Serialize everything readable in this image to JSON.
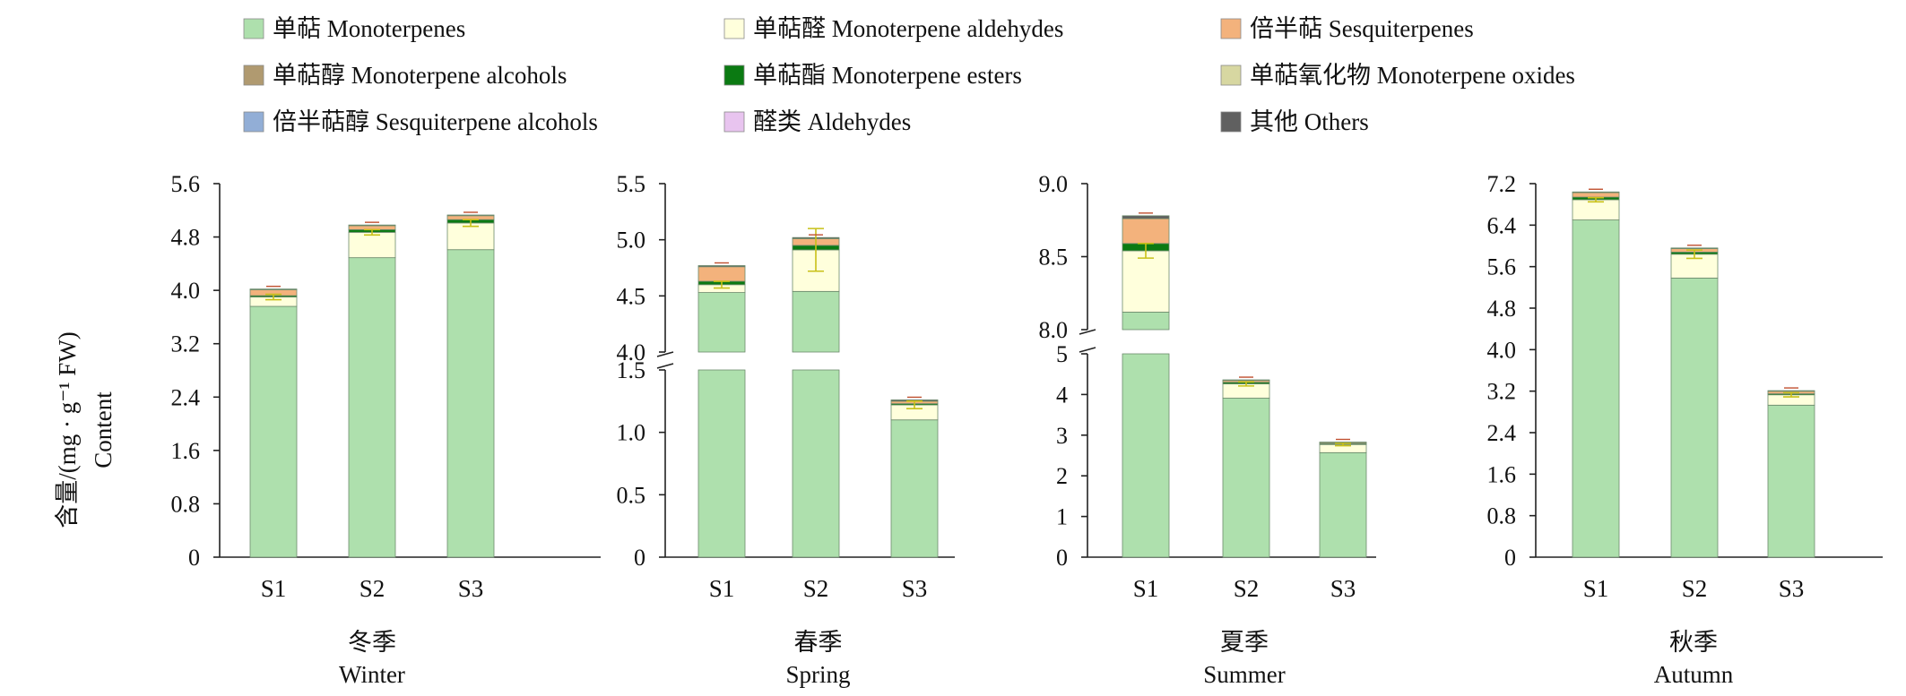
{
  "legend": [
    {
      "label": "单萜 Monoterpenes",
      "color": "#aee0ad"
    },
    {
      "label": "单萜醇 Monoterpene alcohols",
      "color": "#b09a70"
    },
    {
      "label": "倍半萜醇 Sesquiterpene alcohols",
      "color": "#92aed6"
    },
    {
      "label": "单萜醛 Monoterpene aldehydes",
      "color": "#ffffdc"
    },
    {
      "label": "单萜酯 Monoterpene esters",
      "color": "#0b7a12"
    },
    {
      "label": "醛类 Aldehydes",
      "color": "#e8c4ef"
    },
    {
      "label": "倍半萜 Sesquiterpenes",
      "color": "#f3b27c"
    },
    {
      "label": "单萜氧化物 Monoterpene oxides",
      "color": "#d7d7a1"
    },
    {
      "label": "其他 Others",
      "color": "#606060"
    }
  ],
  "y_axis_label": {
    "line1": "含量/(mg · g⁻¹ FW)",
    "line2": "Content"
  },
  "chart_data": [
    {
      "type": "bar",
      "stacked": true,
      "season": {
        "cn": "冬季",
        "en": "Winter"
      },
      "categories": [
        "S1",
        "S2",
        "S3"
      ],
      "y_ticks": [
        "0",
        "0.8",
        "1.6",
        "2.4",
        "3.2",
        "4.0",
        "4.8",
        "5.6"
      ],
      "ylim": [
        0,
        5.6
      ],
      "series": [
        {
          "name": "单萜 Monoterpenes",
          "values": [
            3.76,
            4.49,
            4.61
          ]
        },
        {
          "name": "单萜醛 Monoterpene aldehydes",
          "values": [
            0.14,
            0.38,
            0.4
          ]
        },
        {
          "name": "单萜酯 Monoterpene esters",
          "values": [
            0.02,
            0.04,
            0.05
          ]
        },
        {
          "name": "倍半萜 Sesquiterpenes",
          "values": [
            0.09,
            0.06,
            0.06
          ]
        },
        {
          "name": "其他 Others",
          "values": [
            0.01,
            0.01,
            0.01
          ]
        }
      ],
      "error": [
        0.04,
        0.04,
        0.05
      ]
    },
    {
      "type": "bar",
      "stacked": true,
      "season": {
        "cn": "春季",
        "en": "Spring"
      },
      "categories": [
        "S1",
        "S2",
        "S3"
      ],
      "axis_break": true,
      "y_ticks_upper": [
        "4.0",
        "4.5",
        "5.0",
        "5.5"
      ],
      "y_ticks_lower": [
        "0",
        "0.5",
        "1.0",
        "1.5"
      ],
      "ylim_upper": [
        4.0,
        5.5
      ],
      "ylim_lower": [
        0,
        1.5
      ],
      "series": [
        {
          "name": "单萜 Monoterpenes",
          "values": [
            4.53,
            4.54,
            1.1
          ]
        },
        {
          "name": "单萜醛 Monoterpene aldehydes",
          "values": [
            0.07,
            0.37,
            0.12
          ]
        },
        {
          "name": "单萜酯 Monoterpene esters",
          "values": [
            0.03,
            0.04,
            0.01
          ]
        },
        {
          "name": "倍半萜 Sesquiterpenes",
          "values": [
            0.13,
            0.06,
            0.02
          ]
        },
        {
          "name": "其他 Others",
          "values": [
            0.01,
            0.01,
            0.01
          ]
        }
      ],
      "error": [
        0.03,
        0.19,
        0.03
      ]
    },
    {
      "type": "bar",
      "stacked": true,
      "season": {
        "cn": "夏季",
        "en": "Summer"
      },
      "categories": [
        "S1",
        "S2",
        "S3"
      ],
      "axis_break": true,
      "y_ticks_upper": [
        "8.0",
        "8.5",
        "9.0"
      ],
      "y_ticks_lower": [
        "0",
        "1",
        "2",
        "3",
        "4",
        "5"
      ],
      "ylim_upper": [
        8.0,
        9.0
      ],
      "ylim_lower": [
        0,
        5
      ],
      "series": [
        {
          "name": "单萜 Monoterpenes",
          "values": [
            8.12,
            3.91,
            2.57
          ]
        },
        {
          "name": "单萜醛 Monoterpene aldehydes",
          "values": [
            0.42,
            0.35,
            0.2
          ]
        },
        {
          "name": "单萜酯 Monoterpene esters",
          "values": [
            0.05,
            0.04,
            0.02
          ]
        },
        {
          "name": "倍半萜 Sesquiterpenes",
          "values": [
            0.17,
            0.05,
            0.03
          ]
        },
        {
          "name": "其他 Others",
          "values": [
            0.02,
            0.01,
            0.01
          ]
        }
      ],
      "error": [
        0.05,
        0.05,
        0.03
      ]
    },
    {
      "type": "bar",
      "stacked": true,
      "season": {
        "cn": "秋季",
        "en": "Autumn"
      },
      "categories": [
        "S1",
        "S2",
        "S3"
      ],
      "y_ticks": [
        "0",
        "0.8",
        "1.6",
        "2.4",
        "3.2",
        "4.0",
        "4.8",
        "5.6",
        "6.4",
        "7.2"
      ],
      "ylim": [
        0,
        7.2
      ],
      "series": [
        {
          "name": "单萜 Monoterpenes",
          "values": [
            6.5,
            5.38,
            2.93
          ]
        },
        {
          "name": "单萜醛 Monoterpene aldehydes",
          "values": [
            0.39,
            0.46,
            0.2
          ]
        },
        {
          "name": "单萜酯 Monoterpene esters",
          "values": [
            0.05,
            0.04,
            0.02
          ]
        },
        {
          "name": "倍半萜 Sesquiterpenes",
          "values": [
            0.09,
            0.07,
            0.05
          ]
        },
        {
          "name": "其他 Others",
          "values": [
            0.01,
            0.01,
            0.01
          ]
        }
      ],
      "error": [
        0.04,
        0.08,
        0.04
      ]
    }
  ]
}
